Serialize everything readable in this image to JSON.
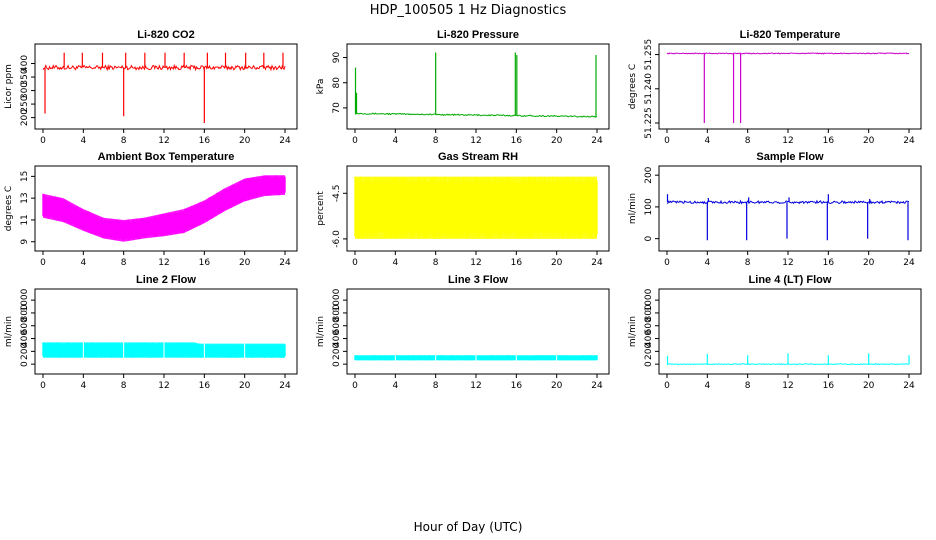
{
  "figure": {
    "title": "HDP_100505  1 Hz Diagnostics",
    "xlabel": "Hour of Day (UTC)"
  },
  "chart_data": [
    {
      "type": "line",
      "title": "Li-820 CO2",
      "ylabel": "Licor ppm",
      "color": "#ff0000",
      "x_ticks": [
        "0",
        "4",
        "8",
        "12",
        "16",
        "20",
        "24"
      ],
      "y_ticks": [
        "200",
        "250",
        "300",
        "350",
        "400"
      ],
      "xlim": [
        0,
        24
      ],
      "ylim": [
        180,
        450
      ],
      "base": 385,
      "noise": 8,
      "spikes": [
        {
          "x": 0.2,
          "y": 215
        },
        {
          "x": 2.1,
          "y": 440
        },
        {
          "x": 3.9,
          "y": 440
        },
        {
          "x": 5.9,
          "y": 440
        },
        {
          "x": 8.0,
          "y": 205
        },
        {
          "x": 8.2,
          "y": 440
        },
        {
          "x": 10.1,
          "y": 440
        },
        {
          "x": 12.1,
          "y": 440
        },
        {
          "x": 14.0,
          "y": 440
        },
        {
          "x": 16.0,
          "y": 180
        },
        {
          "x": 16.3,
          "y": 440
        },
        {
          "x": 18.1,
          "y": 440
        },
        {
          "x": 20.1,
          "y": 440
        },
        {
          "x": 21.9,
          "y": 440
        },
        {
          "x": 23.8,
          "y": 440
        }
      ]
    },
    {
      "type": "line",
      "title": "Li-820 Pressure",
      "ylabel": "kPa",
      "color": "#00aa00",
      "x_ticks": [
        "0",
        "4",
        "8",
        "12",
        "16",
        "20",
        "24"
      ],
      "y_ticks": [
        "70",
        "80",
        "90"
      ],
      "xlim": [
        0,
        24
      ],
      "ylim": [
        64,
        93
      ],
      "base_start": 67.8,
      "base_end": 66.5,
      "noise": 0.25,
      "spikes": [
        {
          "x": 0.05,
          "y": 86
        },
        {
          "x": 0.15,
          "y": 76
        },
        {
          "x": 8.0,
          "y": 92
        },
        {
          "x": 15.9,
          "y": 92
        },
        {
          "x": 16.05,
          "y": 91
        },
        {
          "x": 23.9,
          "y": 91
        }
      ]
    },
    {
      "type": "line",
      "title": "Li-820 Temperature",
      "ylabel": "degrees C",
      "color": "#cc00cc",
      "x_ticks": [
        "0",
        "4",
        "8",
        "12",
        "16",
        "20",
        "24"
      ],
      "y_ticks": [
        "51.225",
        "51.240",
        "51.255"
      ],
      "xlim": [
        0,
        24
      ],
      "ylim": [
        51.225,
        51.257
      ],
      "base": 51.2555,
      "noise": 0.0002,
      "spikes": [
        {
          "x": 3.7,
          "y": 51.225
        },
        {
          "x": 6.6,
          "y": 51.225
        },
        {
          "x": 7.3,
          "y": 51.225
        }
      ]
    },
    {
      "type": "area",
      "title": "Ambient Box Temperature",
      "ylabel": "degrees C",
      "color": "#ff00ff",
      "x_ticks": [
        "0",
        "4",
        "8",
        "12",
        "16",
        "20",
        "24"
      ],
      "y_ticks": [
        "9",
        "11",
        "13",
        "15"
      ],
      "xlim": [
        0,
        24
      ],
      "ylim": [
        8.7,
        15.4
      ],
      "x": [
        0,
        2,
        4,
        6,
        8,
        10,
        12,
        14,
        16,
        18,
        20,
        22,
        24
      ],
      "upper": [
        13.4,
        13.0,
        12.0,
        11.2,
        11.0,
        11.2,
        11.6,
        12.0,
        12.8,
        13.9,
        14.8,
        15.1,
        15.1
      ],
      "lower": [
        11.2,
        10.8,
        10.0,
        9.3,
        9.0,
        9.3,
        9.5,
        9.8,
        10.7,
        11.8,
        12.7,
        13.2,
        13.3
      ]
    },
    {
      "type": "area",
      "title": "Gas Stream RH",
      "ylabel": "percent",
      "color": "#ffff00",
      "x_ticks": [
        "0",
        "4",
        "8",
        "12",
        "16",
        "20",
        "24"
      ],
      "y_ticks": [
        "-6.0",
        "-4.5"
      ],
      "xlim": [
        0,
        24
      ],
      "ylim": [
        -6.2,
        -3.8
      ],
      "x": [
        0,
        24
      ],
      "upper": [
        -3.95,
        -3.95
      ],
      "lower": [
        -6.0,
        -6.0
      ]
    },
    {
      "type": "line",
      "title": "Sample Flow",
      "ylabel": "ml/min",
      "color": "#0000dd",
      "x_ticks": [
        "0",
        "4",
        "8",
        "12",
        "16",
        "20",
        "24"
      ],
      "y_ticks": [
        "0",
        "100",
        "200"
      ],
      "xlim": [
        0,
        24
      ],
      "ylim": [
        -20,
        210
      ],
      "base": 115,
      "noise": 4,
      "spikes": [
        {
          "x": 0.05,
          "y": 140
        },
        {
          "x": 4.0,
          "y": -5
        },
        {
          "x": 4.1,
          "y": 128
        },
        {
          "x": 7.9,
          "y": -5
        },
        {
          "x": 8.1,
          "y": 130
        },
        {
          "x": 11.9,
          "y": 0
        },
        {
          "x": 12.1,
          "y": 130
        },
        {
          "x": 15.9,
          "y": -5
        },
        {
          "x": 16.0,
          "y": 140
        },
        {
          "x": 19.9,
          "y": 0
        },
        {
          "x": 20.1,
          "y": 125
        },
        {
          "x": 23.9,
          "y": -5
        }
      ]
    },
    {
      "type": "area",
      "title": "Line 2 Flow",
      "ylabel": "ml/min",
      "color": "#00ffff",
      "x_ticks": [
        "0",
        "4",
        "8",
        "12",
        "16",
        "20",
        "24"
      ],
      "y_ticks": [
        "0",
        "200",
        "400",
        "600",
        "800",
        "1000"
      ],
      "xlim": [
        0,
        24
      ],
      "ylim": [
        -60,
        1080
      ],
      "x": [
        0,
        15,
        15.5,
        24
      ],
      "upper": [
        340,
        340,
        320,
        320
      ],
      "lower": [
        100,
        100,
        100,
        100
      ],
      "gaps": [
        4,
        8,
        12,
        16,
        20
      ]
    },
    {
      "type": "area",
      "title": "Line 3 Flow",
      "ylabel": "ml/min",
      "color": "#00ffff",
      "x_ticks": [
        "0",
        "4",
        "8",
        "12",
        "16",
        "20",
        "24"
      ],
      "y_ticks": [
        "0",
        "200",
        "400",
        "600",
        "800",
        "1000"
      ],
      "xlim": [
        0,
        24
      ],
      "ylim": [
        -60,
        1080
      ],
      "x": [
        0,
        24
      ],
      "upper": [
        140,
        140
      ],
      "lower": [
        60,
        60
      ],
      "gaps": [
        4,
        8,
        12,
        16,
        20
      ]
    },
    {
      "type": "line",
      "title": "Line 4 (LT) Flow",
      "ylabel": "ml/min",
      "color": "#00ffff",
      "x_ticks": [
        "0",
        "4",
        "8",
        "12",
        "16",
        "20",
        "24"
      ],
      "y_ticks": [
        "0",
        "200",
        "400",
        "600",
        "800",
        "1000"
      ],
      "xlim": [
        0,
        24
      ],
      "ylim": [
        -60,
        1080
      ],
      "base": 0,
      "noise": 6,
      "spikes": [
        {
          "x": 0.05,
          "y": 130
        },
        {
          "x": 4.0,
          "y": 160
        },
        {
          "x": 8.0,
          "y": 140
        },
        {
          "x": 12.0,
          "y": 170
        },
        {
          "x": 16.0,
          "y": 140
        },
        {
          "x": 20.0,
          "y": 170
        },
        {
          "x": 24.0,
          "y": 140
        }
      ]
    }
  ]
}
